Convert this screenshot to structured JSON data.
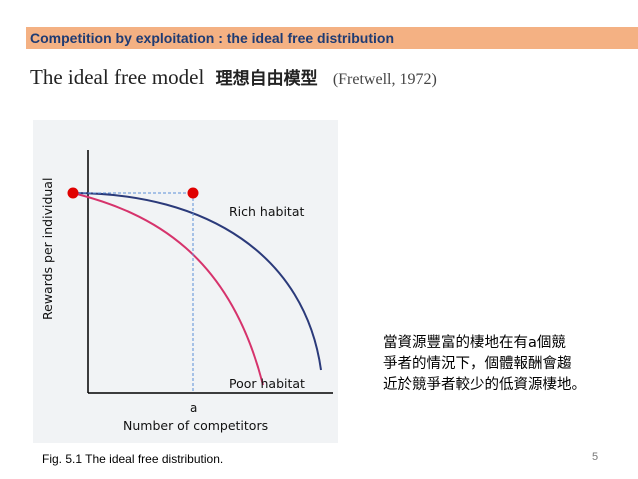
{
  "header": {
    "text": "Competition by exploitation : the ideal free distribution"
  },
  "title": {
    "main": "The ideal free model",
    "chinese": "理想自由模型",
    "citation": "(Fretwell, 1972)"
  },
  "figure": {
    "xlabel": "Number of competitors",
    "ylabel": "Rewards per individual",
    "tick_label": "a",
    "rich_label": "Rich habitat",
    "poor_label": "Poor habitat",
    "caption": "Fig. 5.1 The ideal free distribution.",
    "colors": {
      "rich": "#2b3a7a",
      "poor": "#d6336c",
      "point": "#e00000",
      "guide": "#5b8fd6"
    }
  },
  "note": {
    "lines": [
      "當資源豐富的棲地在有a個競",
      "爭者的情況下，個體報酬會趨",
      "近於競爭者較少的低資源棲地。"
    ]
  },
  "slide": {
    "page_number": "5"
  }
}
